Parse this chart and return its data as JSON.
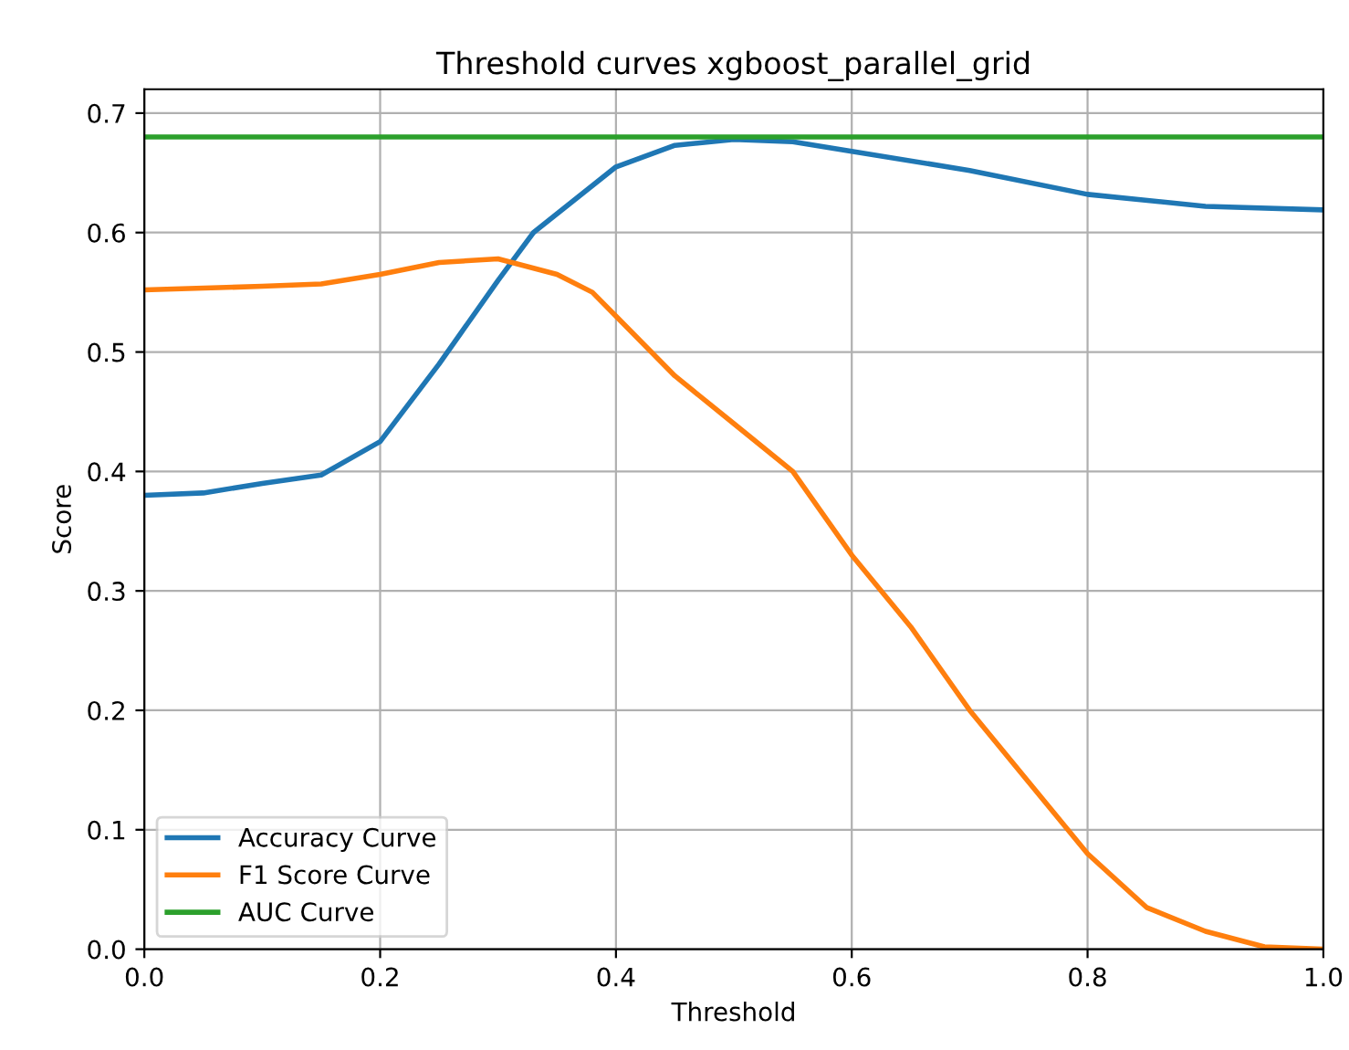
{
  "chart_data": {
    "type": "line",
    "title": "Threshold curves xgboost_parallel_grid",
    "xlabel": "Threshold",
    "ylabel": "Score",
    "series": [
      {
        "name": "Accuracy Curve",
        "color": "#1f77b4",
        "x": [
          0,
          0.05,
          0.1,
          0.15,
          0.2,
          0.25,
          0.3,
          0.33,
          0.4,
          0.45,
          0.5,
          0.55,
          0.6,
          0.7,
          0.8,
          0.9,
          1.0
        ],
        "values": [
          0.38,
          0.382,
          0.39,
          0.397,
          0.425,
          0.49,
          0.56,
          0.6,
          0.655,
          0.673,
          0.678,
          0.676,
          0.668,
          0.652,
          0.632,
          0.622,
          0.619
        ]
      },
      {
        "name": "F1 Score Curve",
        "color": "#ff7f0e",
        "x": [
          0,
          0.1,
          0.15,
          0.2,
          0.25,
          0.3,
          0.35,
          0.38,
          0.4,
          0.45,
          0.5,
          0.55,
          0.6,
          0.65,
          0.7,
          0.75,
          0.8,
          0.85,
          0.9,
          0.95,
          1.0
        ],
        "values": [
          0.552,
          0.555,
          0.557,
          0.565,
          0.575,
          0.578,
          0.565,
          0.55,
          0.53,
          0.48,
          0.44,
          0.4,
          0.33,
          0.27,
          0.2,
          0.14,
          0.08,
          0.035,
          0.015,
          0.002,
          0.0
        ]
      },
      {
        "name": "AUC Curve",
        "color": "#2ca02c",
        "x": [
          0,
          1.0
        ],
        "values": [
          0.68,
          0.68
        ]
      }
    ],
    "xlim": [
      0,
      1.0
    ],
    "ylim": [
      0,
      0.72
    ],
    "xticks": [
      {
        "value": 0,
        "label": "0.0"
      },
      {
        "value": 0.2,
        "label": "0.2"
      },
      {
        "value": 0.4,
        "label": "0.4"
      },
      {
        "value": 0.6,
        "label": "0.6"
      },
      {
        "value": 0.8,
        "label": "0.8"
      },
      {
        "value": 1.0,
        "label": "1.0"
      }
    ],
    "yticks": [
      {
        "value": 0,
        "label": "0.0"
      },
      {
        "value": 0.1,
        "label": "0.1"
      },
      {
        "value": 0.2,
        "label": "0.2"
      },
      {
        "value": 0.3,
        "label": "0.3"
      },
      {
        "value": 0.4,
        "label": "0.4"
      },
      {
        "value": 0.5,
        "label": "0.5"
      },
      {
        "value": 0.6,
        "label": "0.6"
      },
      {
        "value": 0.7,
        "label": "0.7"
      }
    ],
    "grid": true,
    "legend": "bottom left",
    "line_style": "solid"
  }
}
